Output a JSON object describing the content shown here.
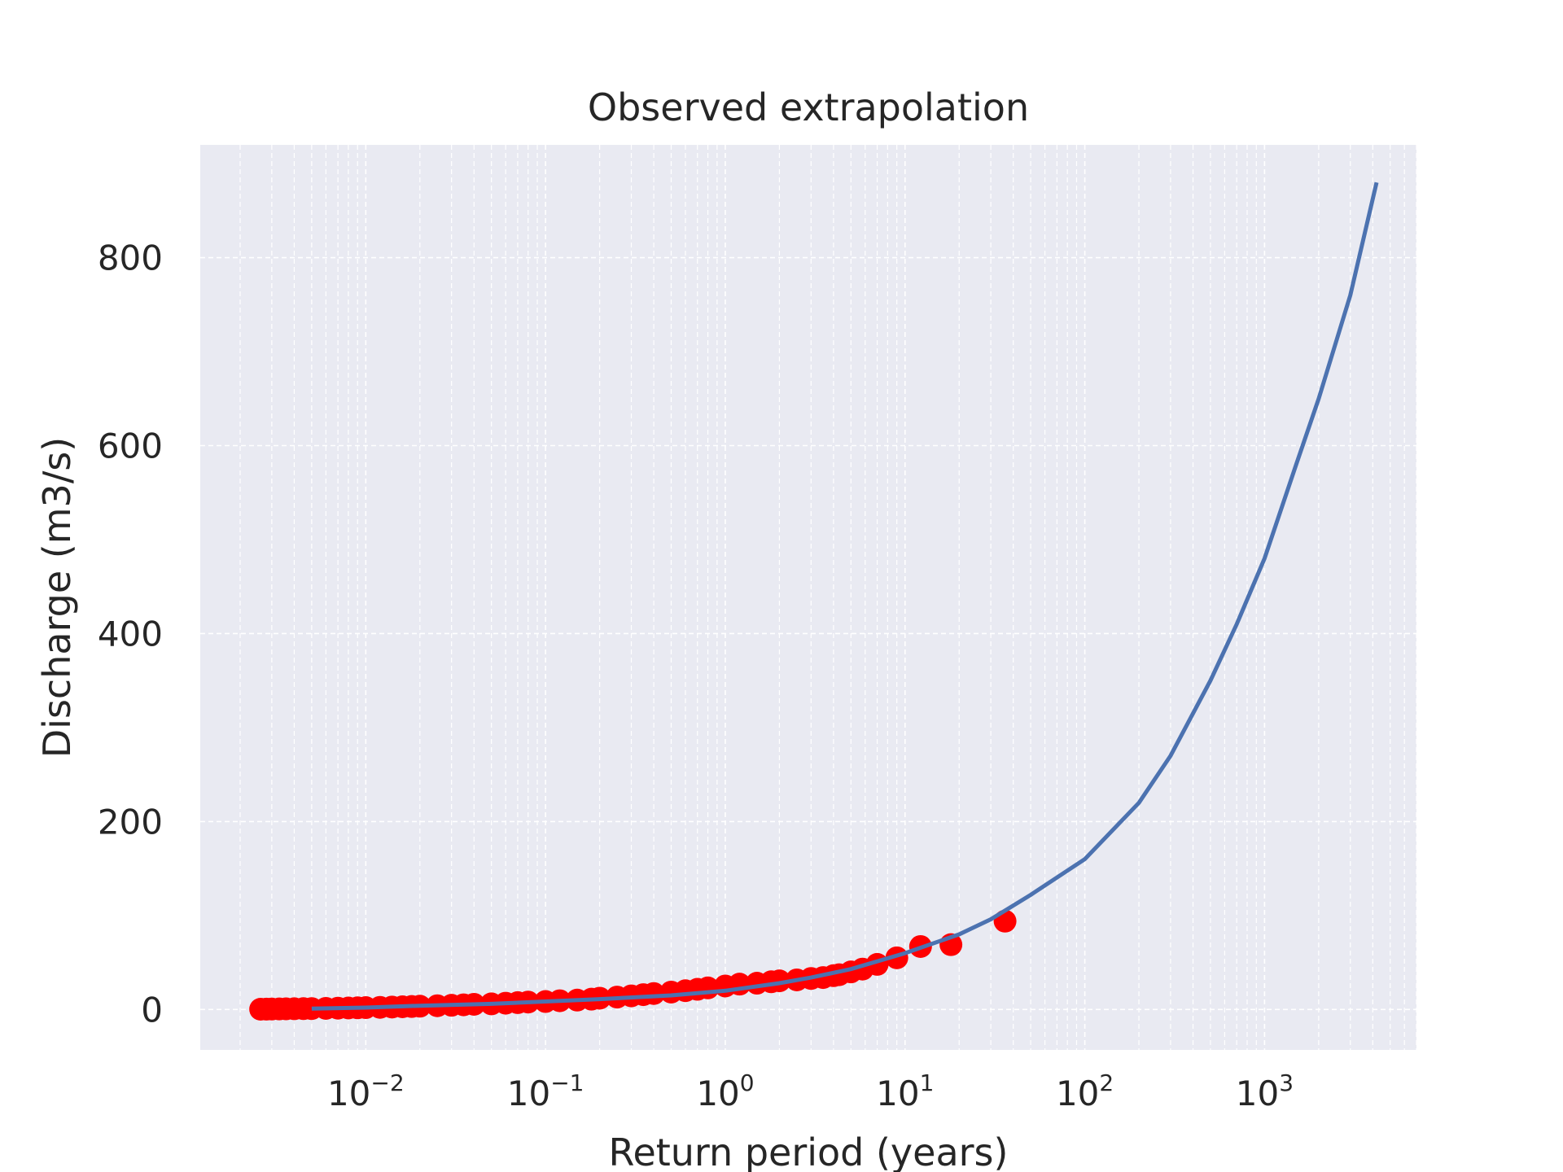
{
  "chart_data": {
    "type": "scatter",
    "title": "Observed extrapolation",
    "xlabel": "Return period (years)",
    "ylabel": "Discharge (m3/s)",
    "x_scale": "log",
    "xlim": [
      0.0012,
      7000
    ],
    "ylim": [
      -43,
      920
    ],
    "x_ticks": [
      {
        "value": 0.01,
        "base": "10",
        "exp": "−2"
      },
      {
        "value": 0.1,
        "base": "10",
        "exp": "−1"
      },
      {
        "value": 1,
        "base": "10",
        "exp": "0"
      },
      {
        "value": 10,
        "base": "10",
        "exp": "1"
      },
      {
        "value": 100,
        "base": "10",
        "exp": "2"
      },
      {
        "value": 1000,
        "base": "10",
        "exp": "3"
      }
    ],
    "y_ticks": [
      0,
      200,
      400,
      600,
      800
    ],
    "grid": true,
    "grid_style": "dashed",
    "colors": {
      "plot_background": "#e9eaf2",
      "grid": "#ffffff",
      "points": "#ff0000",
      "curve": "#4c72b0",
      "text": "#262626"
    },
    "series": [
      {
        "kind": "scatter",
        "x": [
          0.0026,
          0.0028,
          0.003,
          0.0033,
          0.0036,
          0.004,
          0.0045,
          0.005,
          0.006,
          0.007,
          0.008,
          0.009,
          0.01,
          0.012,
          0.014,
          0.016,
          0.018,
          0.02,
          0.025,
          0.03,
          0.035,
          0.04,
          0.05,
          0.06,
          0.07,
          0.08,
          0.1,
          0.12,
          0.15,
          0.18,
          0.2,
          0.25,
          0.3,
          0.35,
          0.4,
          0.5,
          0.6,
          0.7,
          0.8,
          1.0,
          1.2,
          1.5,
          1.8,
          2.0,
          2.5,
          3.0,
          3.5,
          4.0,
          4.3,
          5.0,
          5.8,
          7.0,
          9.0,
          12.2,
          18.0,
          36.0
        ],
        "y": [
          0.3,
          0.4,
          0.5,
          0.6,
          0.7,
          0.8,
          0.9,
          1.0,
          1.2,
          1.4,
          1.6,
          1.8,
          2.0,
          2.3,
          2.6,
          2.9,
          3.2,
          3.5,
          4.0,
          4.5,
          5.0,
          5.5,
          6.0,
          6.7,
          7.3,
          7.9,
          8.5,
          9.3,
          10.0,
          11.0,
          12.0,
          13.2,
          14.5,
          15.8,
          17.0,
          18.5,
          20.0,
          21.5,
          23.0,
          25.0,
          27.0,
          28.0,
          29.5,
          30.5,
          31.5,
          33.0,
          34.0,
          36.0,
          37.0,
          40.0,
          43.0,
          48.0,
          55.0,
          67.0,
          69.0,
          94.0
        ]
      },
      {
        "kind": "line",
        "x": [
          0.005,
          0.01,
          0.02,
          0.05,
          0.1,
          0.2,
          0.5,
          1,
          2,
          3,
          5,
          10,
          20,
          30,
          50,
          100,
          200,
          300,
          500,
          700,
          1000,
          1500,
          2000,
          3000,
          4200
        ],
        "y": [
          1,
          2,
          4,
          6,
          8.5,
          11,
          15,
          20,
          28,
          34,
          43,
          60,
          80,
          96,
          122,
          160,
          220,
          270,
          350,
          410,
          480,
          580,
          650,
          760,
          880
        ]
      }
    ]
  }
}
